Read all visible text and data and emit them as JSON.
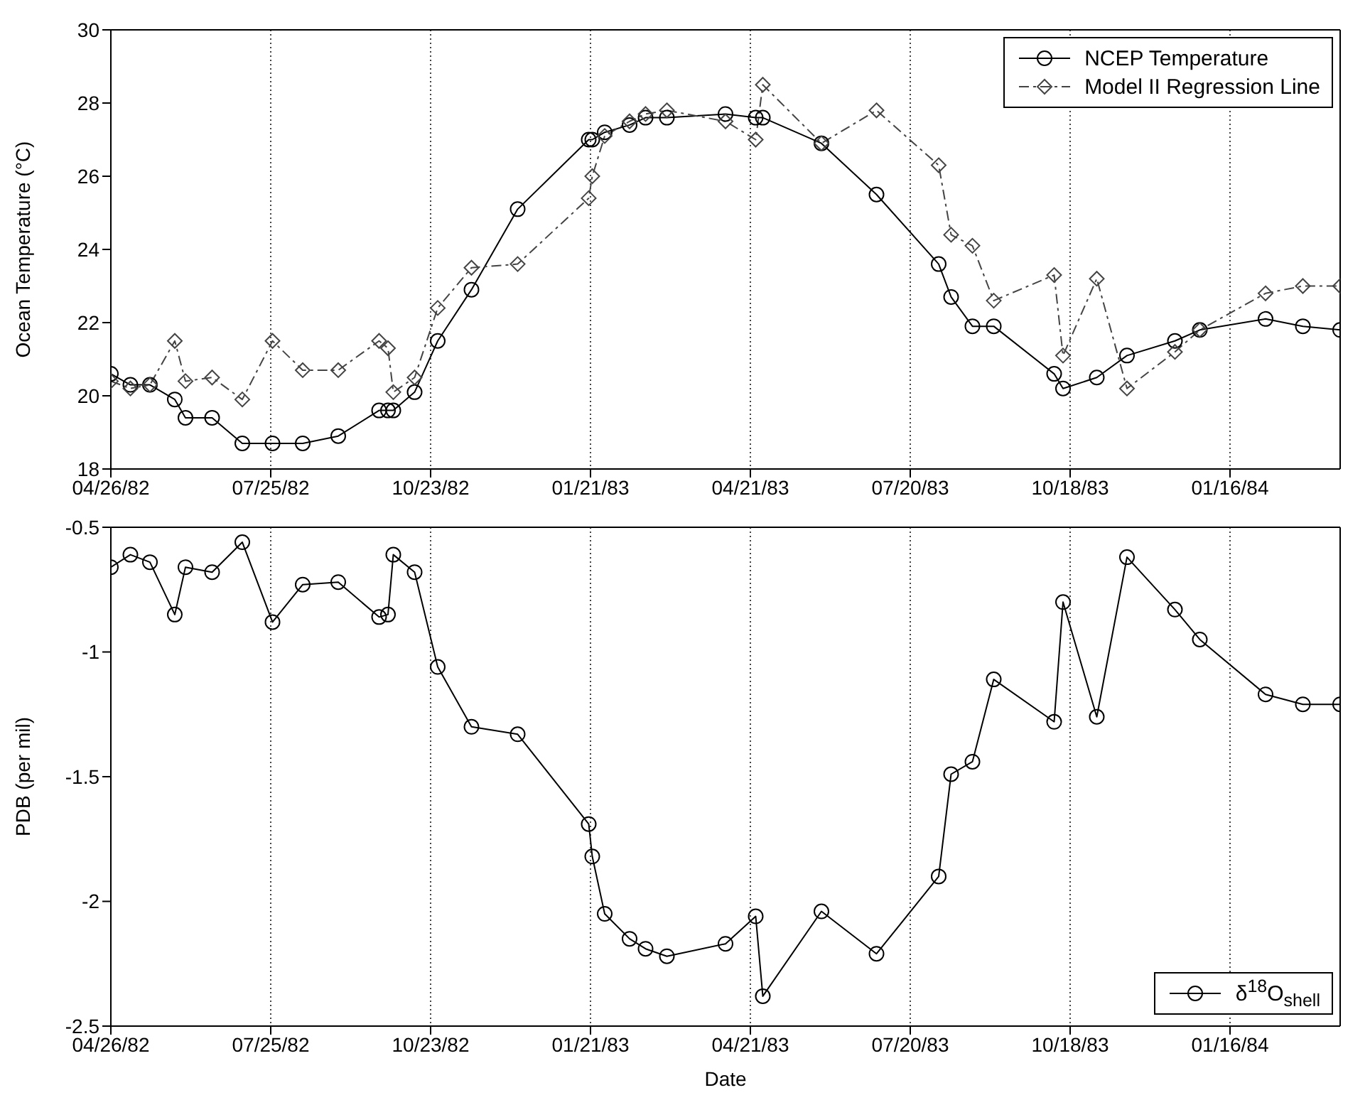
{
  "chart_data": [
    {
      "type": "line",
      "ylabel": "Ocean Temperature (°C)",
      "x": [
        "1982-04-26",
        "1982-05-07",
        "1982-05-18",
        "1982-06-01",
        "1982-06-07",
        "1982-06-22",
        "1982-07-09",
        "1982-07-26",
        "1982-08-12",
        "1982-09-01",
        "1982-09-24",
        "1982-09-29",
        "1982-10-02",
        "1982-10-14",
        "1982-10-27",
        "1982-11-15",
        "1982-12-11",
        "1983-01-20",
        "1983-01-22",
        "1983-01-29",
        "1983-02-12",
        "1983-02-21",
        "1983-03-05",
        "1983-04-07",
        "1983-04-24",
        "1983-04-28",
        "1983-05-31",
        "1983-07-01",
        "1983-08-05",
        "1983-08-12",
        "1983-08-24",
        "1983-09-05",
        "1983-10-09",
        "1983-10-14",
        "1983-11-02",
        "1983-11-19",
        "1983-12-16",
        "1983-12-30",
        "1984-02-05",
        "1984-02-26",
        "1984-03-18"
      ],
      "series": [
        {
          "name": "NCEP Temperature",
          "color": "#000000",
          "marker": "circle",
          "line_style": "solid",
          "values": [
            20.6,
            20.3,
            20.3,
            19.9,
            19.4,
            19.4,
            18.7,
            18.7,
            18.7,
            18.9,
            19.6,
            19.6,
            19.6,
            20.1,
            21.5,
            22.9,
            25.1,
            27.0,
            27.0,
            27.2,
            27.4,
            27.6,
            27.6,
            27.7,
            27.6,
            27.6,
            26.9,
            25.5,
            23.6,
            22.7,
            21.9,
            21.9,
            20.6,
            20.2,
            20.5,
            21.1,
            21.5,
            21.8,
            22.1,
            21.9,
            21.8
          ]
        },
        {
          "name": "Model II Regression Line",
          "color": "#444444",
          "marker": "diamond",
          "line_style": "dashed",
          "values": [
            20.4,
            20.2,
            20.3,
            21.5,
            20.4,
            20.5,
            19.9,
            21.5,
            20.7,
            20.7,
            21.5,
            21.3,
            20.1,
            20.5,
            22.4,
            23.5,
            23.6,
            25.4,
            26.0,
            27.1,
            27.5,
            27.7,
            27.8,
            27.5,
            27.0,
            28.5,
            26.9,
            27.8,
            26.3,
            24.4,
            24.1,
            22.6,
            23.3,
            21.1,
            23.2,
            20.2,
            21.2,
            21.8,
            22.8,
            23.0,
            23.0
          ]
        }
      ],
      "xlim": [
        "1982-04-26",
        "1984-03-18"
      ],
      "xticks": [
        {
          "value": "1982-04-26",
          "label": "04/26/82"
        },
        {
          "value": "1982-07-25",
          "label": "07/25/82"
        },
        {
          "value": "1982-10-23",
          "label": "10/23/82"
        },
        {
          "value": "1983-01-21",
          "label": "01/21/83"
        },
        {
          "value": "1983-04-21",
          "label": "04/21/83"
        },
        {
          "value": "1983-07-20",
          "label": "07/20/83"
        },
        {
          "value": "1983-10-18",
          "label": "10/18/83"
        },
        {
          "value": "1984-01-16",
          "label": "01/16/84"
        }
      ],
      "ylim": [
        18,
        30
      ],
      "yticks": [
        18,
        20,
        22,
        24,
        26,
        28,
        30
      ],
      "grid": "x",
      "legend": "top right"
    },
    {
      "type": "line",
      "xlabel": "Date",
      "ylabel": "PDB (per mil)",
      "x": [
        "1982-04-26",
        "1982-05-07",
        "1982-05-18",
        "1982-06-01",
        "1982-06-07",
        "1982-06-22",
        "1982-07-09",
        "1982-07-26",
        "1982-08-12",
        "1982-09-01",
        "1982-09-24",
        "1982-09-29",
        "1982-10-02",
        "1982-10-14",
        "1982-10-27",
        "1982-11-15",
        "1982-12-11",
        "1983-01-20",
        "1983-01-22",
        "1983-01-29",
        "1983-02-12",
        "1983-02-21",
        "1983-03-05",
        "1983-04-07",
        "1983-04-24",
        "1983-04-28",
        "1983-05-31",
        "1983-07-01",
        "1983-08-05",
        "1983-08-12",
        "1983-08-24",
        "1983-09-05",
        "1983-10-09",
        "1983-10-14",
        "1983-11-02",
        "1983-11-19",
        "1983-12-16",
        "1983-12-30",
        "1984-02-05",
        "1984-02-26",
        "1984-03-18"
      ],
      "series": [
        {
          "name": "δ$^{18}$O$_{shell}$",
          "color": "#000000",
          "marker": "circle",
          "line_style": "solid",
          "values": [
            -0.66,
            -0.61,
            -0.64,
            -0.85,
            -0.66,
            -0.68,
            -0.56,
            -0.88,
            -0.73,
            -0.72,
            -0.86,
            -0.85,
            -0.61,
            -0.68,
            -1.06,
            -1.3,
            -1.33,
            -1.69,
            -1.82,
            -2.05,
            -2.15,
            -2.19,
            -2.22,
            -2.17,
            -2.06,
            -2.38,
            -2.04,
            -2.21,
            -1.9,
            -1.49,
            -1.44,
            -1.11,
            -1.28,
            -0.8,
            -1.26,
            -0.62,
            -0.83,
            -0.95,
            -1.17,
            -1.21,
            -1.21
          ]
        }
      ],
      "xlim": [
        "1982-04-26",
        "1984-03-18"
      ],
      "xticks": [
        {
          "value": "1982-04-26",
          "label": "04/26/82"
        },
        {
          "value": "1982-07-25",
          "label": "07/25/82"
        },
        {
          "value": "1982-10-23",
          "label": "10/23/82"
        },
        {
          "value": "1983-01-21",
          "label": "01/21/83"
        },
        {
          "value": "1983-04-21",
          "label": "04/21/83"
        },
        {
          "value": "1983-07-20",
          "label": "07/20/83"
        },
        {
          "value": "1983-10-18",
          "label": "10/18/83"
        },
        {
          "value": "1984-01-16",
          "label": "01/16/84"
        }
      ],
      "ylim": [
        -2.5,
        -0.5
      ],
      "yticks": [
        -2.5,
        -2,
        -1.5,
        -1,
        -0.5
      ],
      "grid": "x",
      "legend": "bottom right"
    }
  ]
}
